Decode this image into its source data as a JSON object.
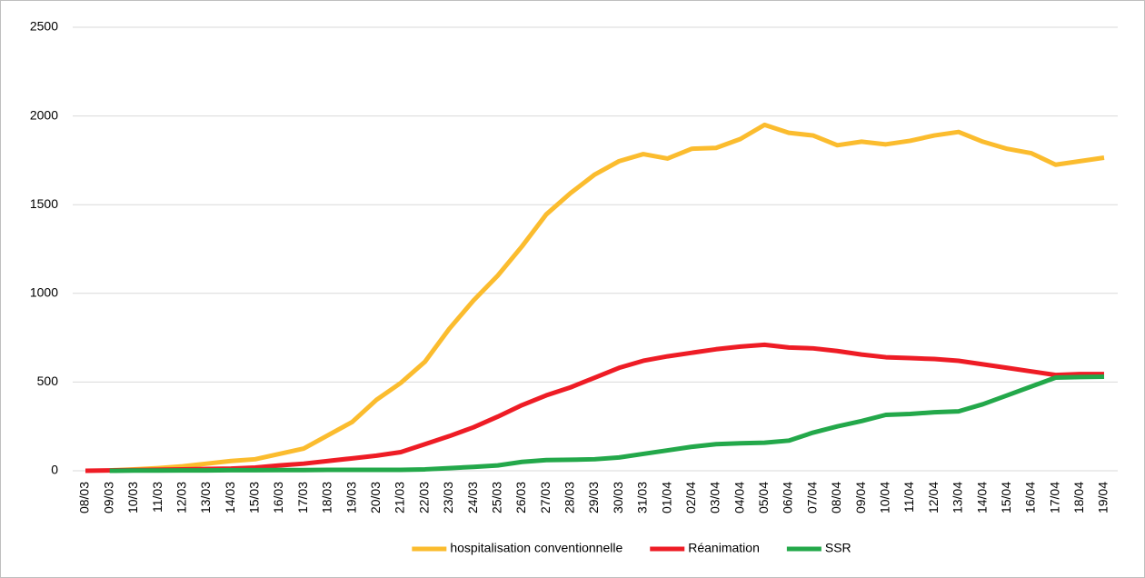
{
  "chart_data": {
    "type": "line",
    "categories": [
      "08/03",
      "09/03",
      "10/03",
      "11/03",
      "12/03",
      "13/03",
      "14/03",
      "15/03",
      "16/03",
      "17/03",
      "18/03",
      "19/03",
      "20/03",
      "21/03",
      "22/03",
      "23/03",
      "24/03",
      "25/03",
      "26/03",
      "27/03",
      "28/03",
      "29/03",
      "30/03",
      "31/03",
      "01/04",
      "02/04",
      "03/04",
      "04/04",
      "05/04",
      "06/04",
      "07/04",
      "08/04",
      "09/04",
      "10/04",
      "11/04",
      "12/04",
      "13/04",
      "14/04",
      "15/04",
      "16/04",
      "17/04",
      "18/04",
      "19/04"
    ],
    "series": [
      {
        "name": "hospitalisation conventionnelle",
        "color": "#fbbc2e",
        "values": [
          null,
          2,
          8,
          15,
          25,
          40,
          55,
          65,
          95,
          125,
          200,
          275,
          400,
          495,
          615,
          800,
          960,
          1100,
          1265,
          1445,
          1565,
          1670,
          1745,
          1785,
          1760,
          1815,
          1820,
          1870,
          1950,
          1905,
          1890,
          1835,
          1855,
          1840,
          1860,
          1890,
          1910,
          1855,
          1815,
          1790,
          1725,
          1745,
          1765
        ]
      },
      {
        "name": "Réanimation",
        "color": "#ee1c25",
        "values": [
          0,
          2,
          4,
          6,
          8,
          10,
          12,
          18,
          30,
          40,
          55,
          70,
          85,
          105,
          150,
          195,
          245,
          305,
          370,
          425,
          470,
          525,
          580,
          620,
          645,
          665,
          685,
          700,
          710,
          695,
          690,
          675,
          655,
          640,
          635,
          630,
          620,
          600,
          580,
          560,
          540,
          545,
          545
        ]
      },
      {
        "name": "SSR",
        "color": "#23a84a",
        "values": [
          null,
          0,
          1,
          1,
          2,
          2,
          3,
          3,
          4,
          4,
          5,
          5,
          5,
          5,
          8,
          15,
          22,
          30,
          50,
          60,
          62,
          65,
          75,
          95,
          115,
          135,
          150,
          155,
          158,
          170,
          215,
          250,
          280,
          315,
          320,
          330,
          335,
          375,
          425,
          475,
          525,
          528,
          530
        ]
      }
    ],
    "ylim": [
      0,
      2500
    ],
    "yticks": [
      0,
      500,
      1000,
      1500,
      2000,
      2500
    ],
    "grid": true,
    "legend": "bottom"
  }
}
